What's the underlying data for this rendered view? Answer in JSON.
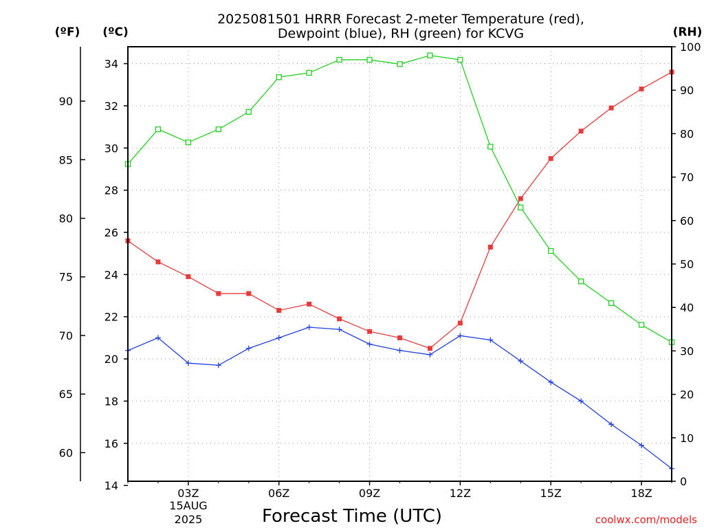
{
  "chart_data": {
    "type": "line",
    "title_line1": "2025081501 HRRR Forecast 2-meter Temperature (red),",
    "title_line2": "Dewpoint (blue), RH (green) for KCVG",
    "xlabel": "Forecast Time (UTC)",
    "unit_f": "(ºF)",
    "unit_c": "(ºC)",
    "unit_rh": "(RH)",
    "date_line1": "15AUG",
    "date_line2": "2025",
    "credit": "coolwx.com/models",
    "x_hours": [
      1,
      2,
      3,
      4,
      5,
      6,
      7,
      8,
      9,
      10,
      11,
      12,
      13,
      14,
      15,
      16,
      17,
      18,
      19
    ],
    "x_ticks": [
      {
        "hour": 3,
        "label": "03Z"
      },
      {
        "hour": 6,
        "label": "06Z"
      },
      {
        "hour": 9,
        "label": "09Z"
      },
      {
        "hour": 12,
        "label": "12Z"
      },
      {
        "hour": 15,
        "label": "15Z"
      },
      {
        "hour": 18,
        "label": "18Z"
      }
    ],
    "xlim": [
      1,
      19
    ],
    "ylim_c": [
      14.2,
      34.8
    ],
    "ylim_rh": [
      0,
      100
    ],
    "yticks_c": [
      14,
      16,
      18,
      20,
      22,
      24,
      26,
      28,
      30,
      32,
      34
    ],
    "yticks_f": [
      60,
      65,
      70,
      75,
      80,
      85,
      90
    ],
    "yticks_rh": [
      0,
      10,
      20,
      30,
      40,
      50,
      60,
      70,
      80,
      90,
      100
    ],
    "grid": true,
    "series": [
      {
        "name": "Temperature",
        "axis": "c",
        "color": "#e83a3a",
        "marker": "filled-square",
        "values": [
          25.6,
          24.6,
          23.9,
          23.1,
          23.1,
          22.3,
          22.6,
          21.9,
          21.3,
          21.0,
          20.5,
          21.7,
          25.3,
          27.6,
          29.5,
          30.8,
          31.9,
          32.8,
          33.6
        ]
      },
      {
        "name": "Dewpoint",
        "axis": "c",
        "color": "#2040e0",
        "marker": "plus",
        "values": [
          20.4,
          21.0,
          19.8,
          19.7,
          20.5,
          21.0,
          21.5,
          21.4,
          20.7,
          20.4,
          20.2,
          21.1,
          20.9,
          19.9,
          18.9,
          18.0,
          16.9,
          15.9,
          14.8
        ]
      },
      {
        "name": "RH",
        "axis": "rh",
        "color": "#20d020",
        "marker": "open-square",
        "values": [
          73,
          81,
          78,
          81,
          85,
          93,
          94,
          97,
          97,
          96,
          98,
          97,
          77,
          63,
          53,
          46,
          41,
          36,
          32
        ]
      }
    ]
  }
}
